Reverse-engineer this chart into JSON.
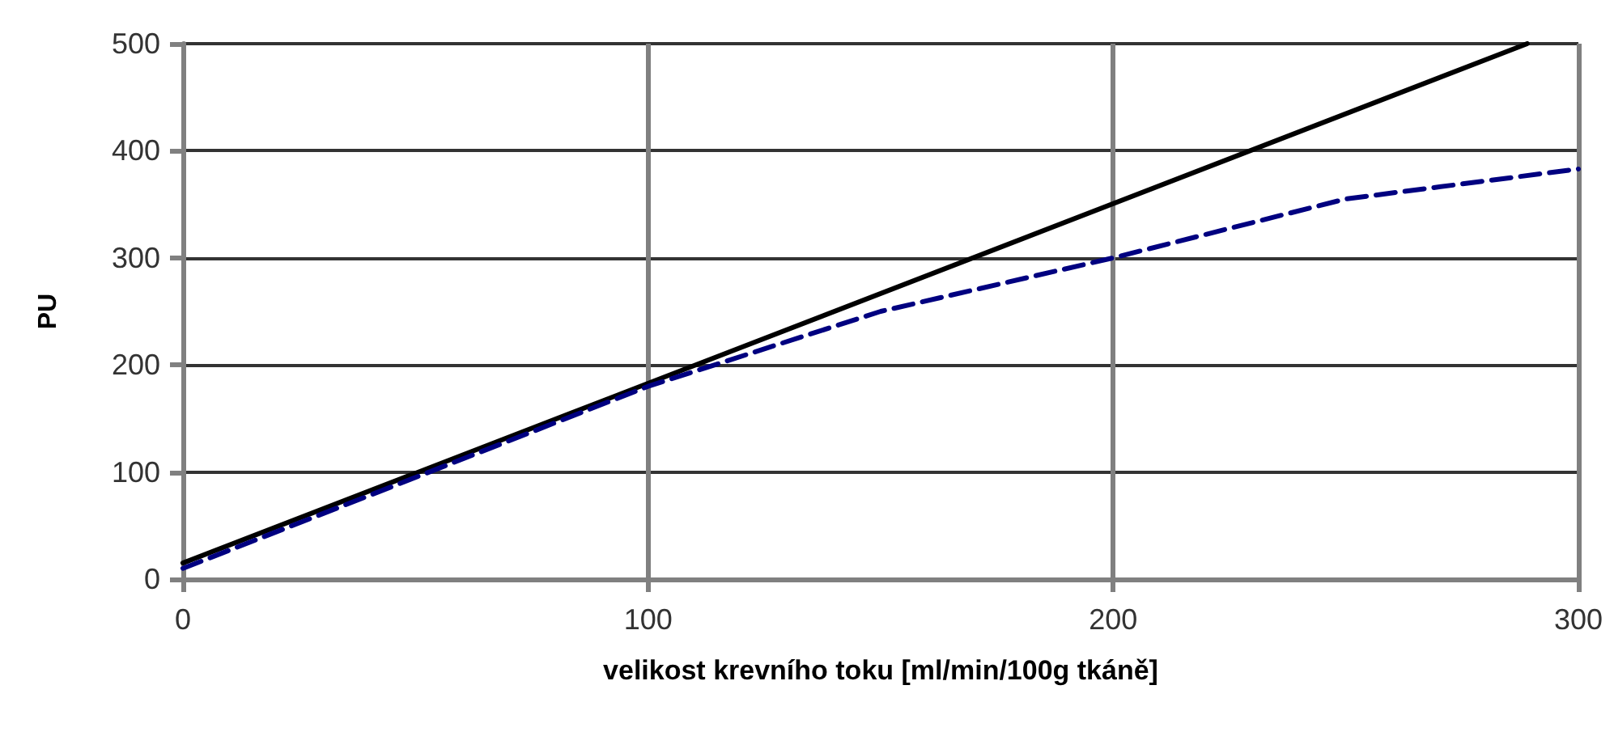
{
  "chart_data": {
    "type": "line",
    "xlabel": "velikost krevního toku [ml/min/100g tkáně]",
    "ylabel": "PU",
    "xlim": [
      0,
      300
    ],
    "xticks": [
      0,
      100,
      200,
      300
    ],
    "ylim": [
      0,
      500
    ],
    "yticks": [
      0,
      100,
      200,
      300,
      400,
      500
    ],
    "grid": true,
    "marker": "none",
    "series": [
      {
        "color": "#000000",
        "line_style": "solid",
        "x": [
          0,
          289
        ],
        "values": [
          15,
          500
        ]
      },
      {
        "color": "#000080",
        "line_style": "dashed",
        "x": [
          0,
          50,
          100,
          150,
          200,
          250,
          300
        ],
        "values": [
          10,
          95,
          180,
          250,
          300,
          355,
          383
        ]
      }
    ]
  }
}
